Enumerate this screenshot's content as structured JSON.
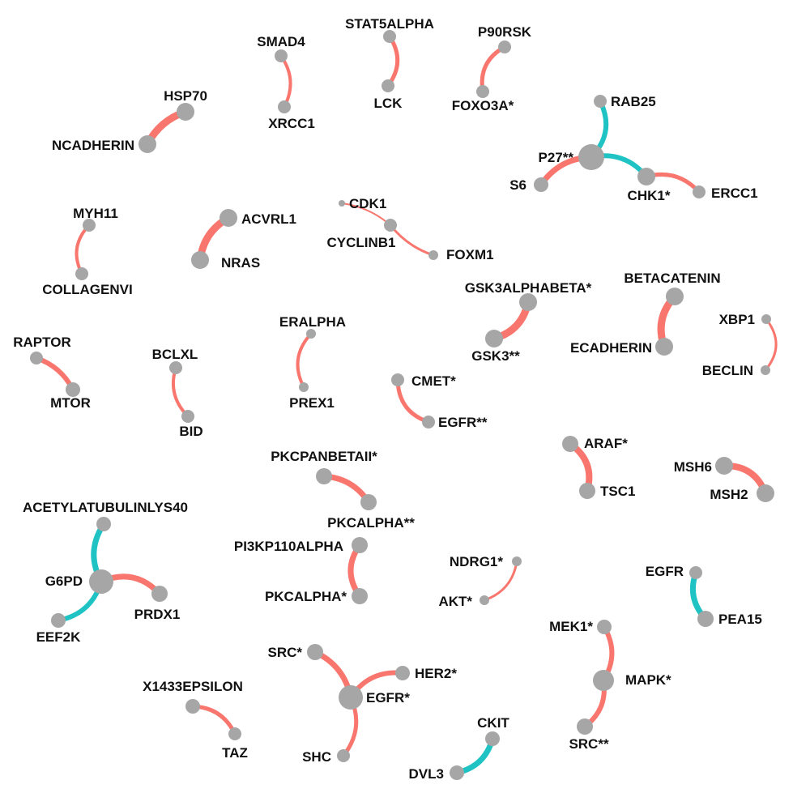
{
  "colors": {
    "positive": "#f8766d",
    "negative": "#1fc3c3",
    "node": "#a6a6a6",
    "label": "#111111"
  },
  "nodes": [
    {
      "id": "STAT5ALPHA",
      "label": "STAT5ALPHA"
    },
    {
      "id": "LCK",
      "label": "LCK"
    },
    {
      "id": "P90RSK",
      "label": "P90RSK"
    },
    {
      "id": "FOXO3A*",
      "label": "FOXO3A*"
    },
    {
      "id": "SMAD4",
      "label": "SMAD4"
    },
    {
      "id": "XRCC1",
      "label": "XRCC1"
    },
    {
      "id": "HSP70",
      "label": "HSP70"
    },
    {
      "id": "NCADHERIN",
      "label": "NCADHERIN"
    },
    {
      "id": "RAB25",
      "label": "RAB25"
    },
    {
      "id": "P27**",
      "label": "P27**"
    },
    {
      "id": "S6",
      "label": "S6"
    },
    {
      "id": "CHK1*",
      "label": "CHK1*"
    },
    {
      "id": "ERCC1",
      "label": "ERCC1"
    },
    {
      "id": "MYH11",
      "label": "MYH11"
    },
    {
      "id": "COLLAGENVI",
      "label": "COLLAGENVI"
    },
    {
      "id": "ACVRL1",
      "label": "ACVRL1"
    },
    {
      "id": "NRAS",
      "label": "NRAS"
    },
    {
      "id": "CDK1",
      "label": "CDK1"
    },
    {
      "id": "CYCLINB1",
      "label": "CYCLINB1"
    },
    {
      "id": "FOXM1",
      "label": "FOXM1"
    },
    {
      "id": "GSK3ALPHABETA*",
      "label": "GSK3ALPHABETA*"
    },
    {
      "id": "GSK3**",
      "label": "GSK3**"
    },
    {
      "id": "BETACATENIN",
      "label": "BETACATENIN"
    },
    {
      "id": "ECADHERIN",
      "label": "ECADHERIN"
    },
    {
      "id": "XBP1",
      "label": "XBP1"
    },
    {
      "id": "BECLIN",
      "label": "BECLIN"
    },
    {
      "id": "RAPTOR",
      "label": "RAPTOR"
    },
    {
      "id": "MTOR",
      "label": "MTOR"
    },
    {
      "id": "BCLXL",
      "label": "BCLXL"
    },
    {
      "id": "BID",
      "label": "BID"
    },
    {
      "id": "ERALPHA",
      "label": "ERALPHA"
    },
    {
      "id": "PREX1",
      "label": "PREX1"
    },
    {
      "id": "CMET*",
      "label": "CMET*"
    },
    {
      "id": "EGFR**",
      "label": "EGFR**"
    },
    {
      "id": "ARAF*",
      "label": "ARAF*"
    },
    {
      "id": "TSC1",
      "label": "TSC1"
    },
    {
      "id": "MSH6",
      "label": "MSH6"
    },
    {
      "id": "MSH2",
      "label": "MSH2"
    },
    {
      "id": "PKCPANBETAII*",
      "label": "PKCPANBETAII*"
    },
    {
      "id": "PKCALPHA**",
      "label": "PKCALPHA**"
    },
    {
      "id": "ACETYLATUBULINLYS40",
      "label": "ACETYLATUBULINLYS40"
    },
    {
      "id": "G6PD",
      "label": "G6PD"
    },
    {
      "id": "PRDX1",
      "label": "PRDX1"
    },
    {
      "id": "EEF2K",
      "label": "EEF2K"
    },
    {
      "id": "PI3KP110ALPHA",
      "label": "PI3KP110ALPHA"
    },
    {
      "id": "PKCALPHA*",
      "label": "PKCALPHA*"
    },
    {
      "id": "NDRG1*",
      "label": "NDRG1*"
    },
    {
      "id": "AKT*",
      "label": "AKT*"
    },
    {
      "id": "EGFR",
      "label": "EGFR"
    },
    {
      "id": "PEA15",
      "label": "PEA15"
    },
    {
      "id": "MEK1*",
      "label": "MEK1*"
    },
    {
      "id": "MAPK*",
      "label": "MAPK*"
    },
    {
      "id": "SRC**",
      "label": "SRC**"
    },
    {
      "id": "SRC*",
      "label": "SRC*"
    },
    {
      "id": "HER2*",
      "label": "HER2*"
    },
    {
      "id": "EGFR*",
      "label": "EGFR*"
    },
    {
      "id": "SHC",
      "label": "SHC"
    },
    {
      "id": "X1433EPSILON",
      "label": "X1433EPSILON"
    },
    {
      "id": "TAZ",
      "label": "TAZ"
    },
    {
      "id": "CKIT",
      "label": "CKIT"
    },
    {
      "id": "DVL3",
      "label": "DVL3"
    }
  ],
  "edges": [
    {
      "source": "STAT5ALPHA",
      "target": "LCK",
      "sign": "positive"
    },
    {
      "source": "P90RSK",
      "target": "FOXO3A*",
      "sign": "positive"
    },
    {
      "source": "SMAD4",
      "target": "XRCC1",
      "sign": "positive"
    },
    {
      "source": "HSP70",
      "target": "NCADHERIN",
      "sign": "positive"
    },
    {
      "source": "RAB25",
      "target": "P27**",
      "sign": "negative"
    },
    {
      "source": "P27**",
      "target": "S6",
      "sign": "positive"
    },
    {
      "source": "P27**",
      "target": "CHK1*",
      "sign": "negative"
    },
    {
      "source": "CHK1*",
      "target": "ERCC1",
      "sign": "positive"
    },
    {
      "source": "MYH11",
      "target": "COLLAGENVI",
      "sign": "positive"
    },
    {
      "source": "ACVRL1",
      "target": "NRAS",
      "sign": "positive"
    },
    {
      "source": "CDK1",
      "target": "CYCLINB1",
      "sign": "positive"
    },
    {
      "source": "CYCLINB1",
      "target": "FOXM1",
      "sign": "positive"
    },
    {
      "source": "GSK3ALPHABETA*",
      "target": "GSK3**",
      "sign": "positive"
    },
    {
      "source": "BETACATENIN",
      "target": "ECADHERIN",
      "sign": "positive"
    },
    {
      "source": "XBP1",
      "target": "BECLIN",
      "sign": "positive"
    },
    {
      "source": "RAPTOR",
      "target": "MTOR",
      "sign": "positive"
    },
    {
      "source": "BCLXL",
      "target": "BID",
      "sign": "positive"
    },
    {
      "source": "ERALPHA",
      "target": "PREX1",
      "sign": "positive"
    },
    {
      "source": "CMET*",
      "target": "EGFR**",
      "sign": "positive"
    },
    {
      "source": "ARAF*",
      "target": "TSC1",
      "sign": "positive"
    },
    {
      "source": "MSH6",
      "target": "MSH2",
      "sign": "positive"
    },
    {
      "source": "PKCPANBETAII*",
      "target": "PKCALPHA**",
      "sign": "positive"
    },
    {
      "source": "ACETYLATUBULINLYS40",
      "target": "G6PD",
      "sign": "negative"
    },
    {
      "source": "G6PD",
      "target": "PRDX1",
      "sign": "positive"
    },
    {
      "source": "G6PD",
      "target": "EEF2K",
      "sign": "negative"
    },
    {
      "source": "PI3KP110ALPHA",
      "target": "PKCALPHA*",
      "sign": "positive"
    },
    {
      "source": "NDRG1*",
      "target": "AKT*",
      "sign": "positive"
    },
    {
      "source": "EGFR",
      "target": "PEA15",
      "sign": "negative"
    },
    {
      "source": "MEK1*",
      "target": "MAPK*",
      "sign": "positive"
    },
    {
      "source": "MAPK*",
      "target": "SRC**",
      "sign": "positive"
    },
    {
      "source": "SRC*",
      "target": "EGFR*",
      "sign": "positive"
    },
    {
      "source": "HER2*",
      "target": "EGFR*",
      "sign": "positive"
    },
    {
      "source": "EGFR*",
      "target": "SHC",
      "sign": "positive"
    },
    {
      "source": "X1433EPSILON",
      "target": "TAZ",
      "sign": "positive"
    },
    {
      "source": "CKIT",
      "target": "DVL3",
      "sign": "negative"
    }
  ]
}
